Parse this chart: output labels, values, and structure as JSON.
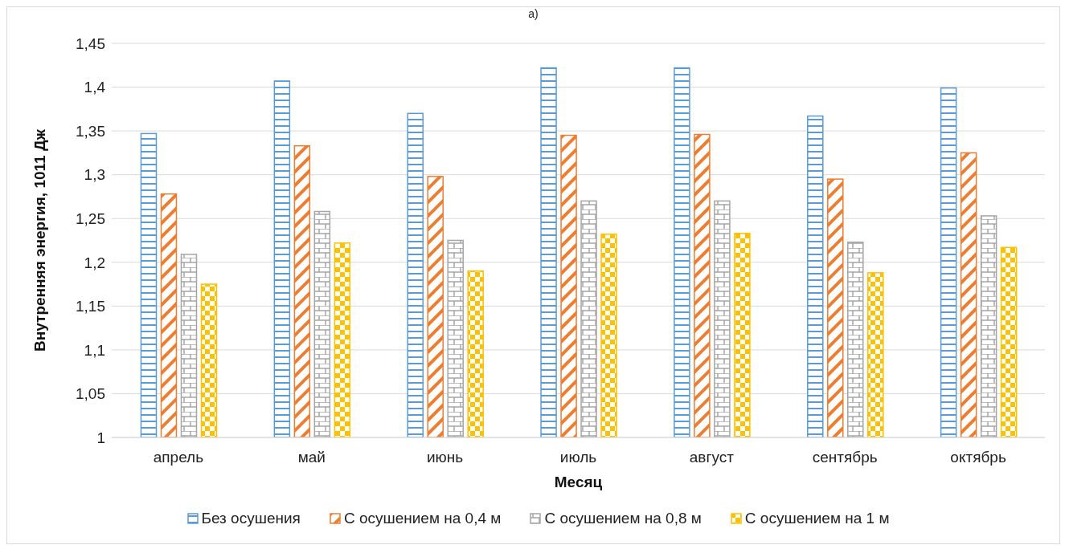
{
  "chart_data": {
    "type": "bar",
    "title": "а)",
    "xlabel": "Месяц",
    "ylabel": "Внутренняя энергия, 1011 Дж",
    "categories": [
      "апрель",
      "май",
      "июнь",
      "июль",
      "август",
      "сентябрь",
      "октябрь"
    ],
    "series": [
      {
        "name": "Без осушения",
        "color": "#5b9bd5",
        "values": [
          1.347,
          1.407,
          1.37,
          1.422,
          1.422,
          1.367,
          1.399
        ]
      },
      {
        "name": "С осушением на 0,4 м",
        "color": "#ed7d31",
        "values": [
          1.278,
          1.333,
          1.298,
          1.345,
          1.346,
          1.295,
          1.325
        ]
      },
      {
        "name": "С осушением на 0,8 м",
        "color": "#a5a5a5",
        "values": [
          1.209,
          1.258,
          1.225,
          1.27,
          1.27,
          1.223,
          1.253
        ]
      },
      {
        "name": "С осушением на 1 м",
        "color": "#ffc000",
        "values": [
          1.175,
          1.222,
          1.19,
          1.232,
          1.233,
          1.188,
          1.217
        ]
      }
    ],
    "ylim": [
      1,
      1.45
    ],
    "yticks": [
      1,
      {
        "value": 1.05,
        "label": "1,05"
      },
      {
        "value": 1.1,
        "label": "1,1"
      },
      {
        "value": 1.15,
        "label": "1,15"
      },
      {
        "value": 1.2,
        "label": "1,2"
      },
      {
        "value": 1.25,
        "label": "1,25"
      },
      {
        "value": 1.3,
        "label": "1,3"
      },
      {
        "value": 1.35,
        "label": "1,35"
      },
      {
        "value": 1.4,
        "label": "1,4"
      },
      {
        "value": 1.45,
        "label": "1,45"
      }
    ],
    "grid": "y",
    "legend": "bottom"
  }
}
